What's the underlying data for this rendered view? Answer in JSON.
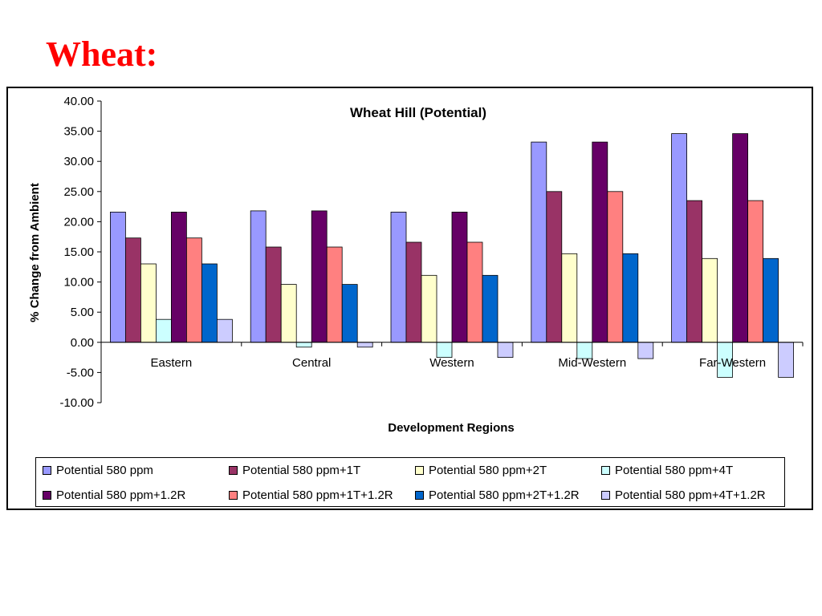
{
  "slide": {
    "title": "Wheat:"
  },
  "colors": [
    "#9999ff",
    "#993366",
    "#ffffcc",
    "#ccffff",
    "#660066",
    "#ff8080",
    "#0066cc",
    "#ccccff"
  ],
  "chart_data": {
    "type": "bar",
    "title": "Wheat Hill (Potential)",
    "xlabel": "Development Regions",
    "ylabel": "% Change from Ambient",
    "ylim": [
      -10,
      40
    ],
    "yticks": [
      40,
      35,
      30,
      25,
      20,
      15,
      10,
      5,
      0,
      -5,
      -10
    ],
    "ytick_labels": [
      "40.00",
      "35.00",
      "30.00",
      "25.00",
      "20.00",
      "15.00",
      "10.00",
      "5.00",
      "0.00",
      "-5.00",
      "-10.00"
    ],
    "grid": false,
    "legend_position": "bottom",
    "categories": [
      "Eastern",
      "Central",
      "Western",
      "Mid-Western",
      "Far-Western"
    ],
    "series": [
      {
        "name": "Potential 580 ppm",
        "values": [
          21.6,
          21.8,
          21.6,
          33.2,
          34.6
        ]
      },
      {
        "name": "Potential 580 ppm+1T",
        "values": [
          17.3,
          15.8,
          16.6,
          25.0,
          23.5
        ]
      },
      {
        "name": "Potential 580 ppm+2T",
        "values": [
          13.0,
          9.6,
          11.1,
          14.7,
          13.9
        ]
      },
      {
        "name": "Potential 580 ppm+4T",
        "values": [
          3.8,
          -0.8,
          -2.5,
          -2.7,
          -5.8
        ]
      },
      {
        "name": "Potential 580 ppm+1.2R",
        "values": [
          21.6,
          21.8,
          21.6,
          33.2,
          34.6
        ]
      },
      {
        "name": "Potential 580 ppm+1T+1.2R",
        "values": [
          17.3,
          15.8,
          16.6,
          25.0,
          23.5
        ]
      },
      {
        "name": "Potential 580 ppm+2T+1.2R",
        "values": [
          13.0,
          9.6,
          11.1,
          14.7,
          13.9
        ]
      },
      {
        "name": "Potential 580 ppm+4T+1.2R",
        "values": [
          3.8,
          -0.8,
          -2.5,
          -2.7,
          -5.8
        ]
      }
    ]
  }
}
